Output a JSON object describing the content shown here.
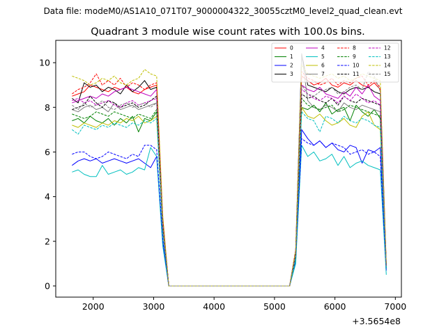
{
  "suptitle": "Data file: modeM0/AS1A10_071T07_9000004322_30055cztM0_level2_quad_clean.evt",
  "chart_data": {
    "type": "line",
    "title": "Quadrant 3 module wise count rates with 100.0s bins.",
    "xlabel": "",
    "ylabel": "",
    "x_offset_label": "+3.5654e8",
    "xlim": [
      1380,
      7100
    ],
    "ylim": [
      -0.5,
      11.0
    ],
    "xticks": [
      2000,
      3000,
      4000,
      5000,
      6000,
      7000
    ],
    "xtick_labels": [
      "2000",
      "3000",
      "4000",
      "5000",
      "6000",
      "7000"
    ],
    "yticks": [
      0,
      2,
      4,
      6,
      8,
      10
    ],
    "ytick_labels": [
      "0",
      "2",
      "4",
      "6",
      "8",
      "10"
    ],
    "grid": false,
    "legend_position": "top-right",
    "x": [
      1650,
      1750,
      1850,
      1950,
      2050,
      2150,
      2250,
      2350,
      2450,
      2550,
      2650,
      2750,
      2850,
      2950,
      3050,
      3150,
      3250,
      3350,
      3450,
      3550,
      3650,
      3750,
      3850,
      3950,
      4050,
      4150,
      4250,
      4350,
      4450,
      4550,
      4650,
      4750,
      4850,
      4950,
      5050,
      5150,
      5250,
      5350,
      5450,
      5550,
      5650,
      5750,
      5850,
      5950,
      6050,
      6150,
      6250,
      6350,
      6450,
      6550,
      6650,
      6750,
      6850
    ],
    "series": [
      {
        "name": "0",
        "color": "#ff0000",
        "dash": "solid",
        "values": [
          8.5,
          8.6,
          8.7,
          9.0,
          8.9,
          8.8,
          8.7,
          8.9,
          8.8,
          8.9,
          8.7,
          8.6,
          8.8,
          8.9,
          9.0,
          3.0,
          0,
          0,
          0,
          0,
          0,
          0,
          0,
          0,
          0,
          0,
          0,
          0,
          0,
          0,
          0,
          0,
          0,
          0,
          0,
          0,
          0,
          1.5,
          9.4,
          9.2,
          9.0,
          9.1,
          9.3,
          9.0,
          8.9,
          9.1,
          9.0,
          9.2,
          9.0,
          8.9,
          9.1,
          8.8,
          1.0
        ]
      },
      {
        "name": "1",
        "color": "#008000",
        "dash": "solid",
        "values": [
          7.4,
          7.5,
          7.3,
          7.6,
          7.4,
          7.3,
          7.5,
          7.2,
          7.5,
          7.3,
          7.6,
          6.9,
          7.5,
          7.4,
          7.8,
          2.6,
          0,
          0,
          0,
          0,
          0,
          0,
          0,
          0,
          0,
          0,
          0,
          0,
          0,
          0,
          0,
          0,
          0,
          0,
          0,
          0,
          0,
          1.3,
          8.0,
          7.9,
          8.1,
          7.8,
          8.2,
          7.7,
          7.9,
          8.0,
          7.4,
          8.1,
          7.8,
          7.6,
          7.9,
          7.5,
          0.9
        ]
      },
      {
        "name": "2",
        "color": "#0000ff",
        "dash": "solid",
        "values": [
          5.4,
          5.6,
          5.7,
          5.6,
          5.7,
          5.5,
          5.6,
          5.7,
          5.6,
          5.5,
          5.6,
          5.7,
          5.5,
          5.3,
          5.8,
          2.0,
          0,
          0,
          0,
          0,
          0,
          0,
          0,
          0,
          0,
          0,
          0,
          0,
          0,
          0,
          0,
          0,
          0,
          0,
          0,
          0,
          0,
          1.1,
          7.0,
          6.6,
          6.3,
          6.5,
          6.2,
          6.4,
          6.1,
          6.0,
          6.3,
          6.2,
          5.5,
          6.1,
          6.0,
          6.2,
          0.7
        ]
      },
      {
        "name": "3",
        "color": "#000000",
        "dash": "solid",
        "values": [
          8.4,
          8.2,
          9.1,
          8.9,
          9.0,
          8.7,
          8.9,
          8.8,
          8.6,
          9.0,
          8.7,
          8.9,
          9.2,
          8.8,
          8.9,
          2.9,
          0,
          0,
          0,
          0,
          0,
          0,
          0,
          0,
          0,
          0,
          0,
          0,
          0,
          0,
          0,
          0,
          0,
          0,
          0,
          0,
          0,
          1.6,
          10.4,
          9.0,
          8.9,
          8.8,
          8.7,
          8.9,
          8.7,
          8.6,
          8.8,
          8.9,
          8.8,
          8.9,
          8.7,
          8.6,
          0.9
        ]
      },
      {
        "name": "4",
        "color": "#bf00bf",
        "dash": "solid",
        "values": [
          8.2,
          8.3,
          8.4,
          8.5,
          8.4,
          8.6,
          8.5,
          8.7,
          8.8,
          8.9,
          8.8,
          8.7,
          8.6,
          8.5,
          8.8,
          2.9,
          0,
          0,
          0,
          0,
          0,
          0,
          0,
          0,
          0,
          0,
          0,
          0,
          0,
          0,
          0,
          0,
          0,
          0,
          0,
          0,
          0,
          1.5,
          9.0,
          8.8,
          8.7,
          8.9,
          8.6,
          8.5,
          8.4,
          8.7,
          8.5,
          8.9,
          8.6,
          9.0,
          8.5,
          8.3,
          0.9
        ]
      },
      {
        "name": "5",
        "color": "#00bfbf",
        "dash": "solid",
        "values": [
          5.1,
          5.2,
          5.0,
          4.9,
          4.9,
          5.4,
          5.0,
          5.1,
          5.2,
          5.0,
          5.1,
          5.3,
          5.2,
          6.2,
          5.8,
          1.8,
          0,
          0,
          0,
          0,
          0,
          0,
          0,
          0,
          0,
          0,
          0,
          0,
          0,
          0,
          0,
          0,
          0,
          0,
          0,
          0,
          0,
          1.0,
          6.3,
          5.8,
          6.0,
          5.6,
          5.7,
          5.9,
          5.4,
          5.8,
          5.3,
          5.5,
          5.6,
          5.4,
          5.3,
          5.2,
          0.5
        ]
      },
      {
        "name": "6",
        "color": "#bfbf00",
        "dash": "solid",
        "values": [
          7.2,
          7.1,
          7.3,
          7.2,
          7.1,
          7.3,
          7.2,
          7.4,
          7.3,
          7.5,
          7.4,
          7.6,
          7.3,
          7.4,
          7.6,
          2.5,
          0,
          0,
          0,
          0,
          0,
          0,
          0,
          0,
          0,
          0,
          0,
          0,
          0,
          0,
          0,
          0,
          0,
          0,
          0,
          0,
          0,
          1.3,
          8.0,
          7.6,
          7.5,
          7.7,
          7.4,
          7.2,
          7.3,
          7.5,
          7.2,
          7.1,
          7.6,
          7.8,
          7.2,
          7.0,
          0.8
        ]
      },
      {
        "name": "7",
        "color": "#808080",
        "dash": "solid",
        "values": [
          7.9,
          7.8,
          8.0,
          8.1,
          7.9,
          8.0,
          7.8,
          8.2,
          7.9,
          8.0,
          8.1,
          7.9,
          8.0,
          8.1,
          8.2,
          2.7,
          0,
          0,
          0,
          0,
          0,
          0,
          0,
          0,
          0,
          0,
          0,
          0,
          0,
          0,
          0,
          0,
          0,
          0,
          0,
          0,
          0,
          1.4,
          10.4,
          8.3,
          8.0,
          7.9,
          8.1,
          8.0,
          7.8,
          8.2,
          8.0,
          7.9,
          8.1,
          8.0,
          7.9,
          7.8,
          0.8
        ]
      },
      {
        "name": "8",
        "color": "#ff0000",
        "dash": "dashed",
        "values": [
          8.6,
          8.8,
          8.9,
          9.1,
          9.5,
          9.0,
          9.2,
          9.0,
          9.3,
          8.9,
          9.1,
          9.0,
          8.8,
          9.0,
          9.1,
          3.1,
          0,
          0,
          0,
          0,
          0,
          0,
          0,
          0,
          0,
          0,
          0,
          0,
          0,
          0,
          0,
          0,
          0,
          0,
          0,
          0,
          0,
          1.6,
          9.6,
          9.3,
          9.2,
          9.0,
          9.1,
          9.3,
          9.0,
          9.2,
          9.1,
          9.3,
          9.4,
          9.0,
          9.2,
          8.9,
          1.0
        ]
      },
      {
        "name": "9",
        "color": "#008000",
        "dash": "dashed",
        "values": [
          7.7,
          7.6,
          7.5,
          7.6,
          7.8,
          7.7,
          7.6,
          7.8,
          7.7,
          7.6,
          7.5,
          7.7,
          7.6,
          7.5,
          7.9,
          2.6,
          0,
          0,
          0,
          0,
          0,
          0,
          0,
          0,
          0,
          0,
          0,
          0,
          0,
          0,
          0,
          0,
          0,
          0,
          0,
          0,
          0,
          1.3,
          8.4,
          8.1,
          8.0,
          7.9,
          8.0,
          8.1,
          7.8,
          7.9,
          8.1,
          8.0,
          7.9,
          7.8,
          7.7,
          7.6,
          0.8
        ]
      },
      {
        "name": "10",
        "color": "#0000ff",
        "dash": "dashed",
        "values": [
          5.9,
          6.0,
          6.0,
          5.8,
          5.7,
          5.8,
          6.0,
          5.9,
          5.8,
          5.7,
          5.9,
          5.8,
          6.3,
          6.3,
          6.1,
          2.1,
          0,
          0,
          0,
          0,
          0,
          0,
          0,
          0,
          0,
          0,
          0,
          0,
          0,
          0,
          0,
          0,
          0,
          0,
          0,
          0,
          0,
          1.2,
          6.6,
          6.4,
          6.3,
          6.5,
          6.2,
          6.4,
          6.3,
          6.2,
          5.9,
          6.0,
          6.1,
          5.9,
          6.0,
          5.8,
          0.7
        ]
      },
      {
        "name": "11",
        "color": "#000000",
        "dash": "dashed",
        "values": [
          7.9,
          8.0,
          8.1,
          8.5,
          8.2,
          8.0,
          8.3,
          8.2,
          8.0,
          8.1,
          8.2,
          8.0,
          8.1,
          8.3,
          8.5,
          2.8,
          0,
          0,
          0,
          0,
          0,
          0,
          0,
          0,
          0,
          0,
          0,
          0,
          0,
          0,
          0,
          0,
          0,
          0,
          0,
          0,
          0,
          1.5,
          8.6,
          8.4,
          8.5,
          8.3,
          8.2,
          8.4,
          8.1,
          8.5,
          8.3,
          8.2,
          8.4,
          8.3,
          8.2,
          8.1,
          0.9
        ]
      },
      {
        "name": "12",
        "color": "#bf00bf",
        "dash": "dashed",
        "values": [
          8.3,
          8.4,
          8.2,
          8.3,
          8.1,
          8.2,
          8.3,
          8.1,
          8.0,
          8.2,
          8.3,
          8.1,
          8.2,
          8.3,
          8.4,
          2.8,
          0,
          0,
          0,
          0,
          0,
          0,
          0,
          0,
          0,
          0,
          0,
          0,
          0,
          0,
          0,
          0,
          0,
          0,
          0,
          0,
          0,
          1.4,
          8.8,
          8.6,
          8.4,
          8.3,
          8.5,
          8.4,
          8.2,
          8.5,
          8.3,
          8.6,
          8.4,
          8.2,
          8.3,
          8.1,
          0.9
        ]
      },
      {
        "name": "13",
        "color": "#00bfbf",
        "dash": "dashed",
        "values": [
          7.0,
          6.8,
          7.2,
          7.1,
          7.0,
          7.2,
          7.1,
          7.3,
          7.2,
          7.1,
          7.3,
          7.2,
          7.4,
          7.3,
          7.5,
          2.4,
          0,
          0,
          0,
          0,
          0,
          0,
          0,
          0,
          0,
          0,
          0,
          0,
          0,
          0,
          0,
          0,
          0,
          0,
          0,
          0,
          0,
          1.2,
          7.8,
          7.5,
          7.4,
          6.9,
          7.6,
          7.5,
          7.3,
          7.6,
          7.4,
          7.3,
          7.5,
          7.4,
          7.2,
          7.1,
          0.8
        ]
      },
      {
        "name": "14",
        "color": "#bfbf00",
        "dash": "dashed",
        "values": [
          9.4,
          9.3,
          9.2,
          9.0,
          9.1,
          9.3,
          9.2,
          9.4,
          9.1,
          9.0,
          9.2,
          9.3,
          9.7,
          9.5,
          9.4,
          3.2,
          0,
          0,
          0,
          0,
          0,
          0,
          0,
          0,
          0,
          0,
          0,
          0,
          0,
          0,
          0,
          0,
          0,
          0,
          0,
          0,
          0,
          1.6,
          9.9,
          9.5,
          9.4,
          9.3,
          9.4,
          9.5,
          9.3,
          9.4,
          9.2,
          9.3,
          9.5,
          9.4,
          9.3,
          9.2,
          1.0
        ]
      },
      {
        "name": "15",
        "color": "#808080",
        "dash": "dashed",
        "values": [
          8.1,
          7.9,
          8.2,
          8.0,
          8.1,
          8.3,
          8.0,
          7.9,
          8.1,
          8.2,
          8.0,
          8.1,
          8.2,
          8.0,
          8.2,
          2.7,
          0,
          0,
          0,
          0,
          0,
          0,
          0,
          0,
          0,
          0,
          0,
          0,
          0,
          0,
          0,
          0,
          0,
          0,
          0,
          0,
          0,
          1.4,
          9.0,
          8.6,
          8.5,
          8.7,
          8.8,
          8.9,
          8.6,
          8.7,
          8.9,
          9.0,
          8.8,
          9.6,
          9.4,
          8.7,
          0.9
        ]
      }
    ]
  }
}
